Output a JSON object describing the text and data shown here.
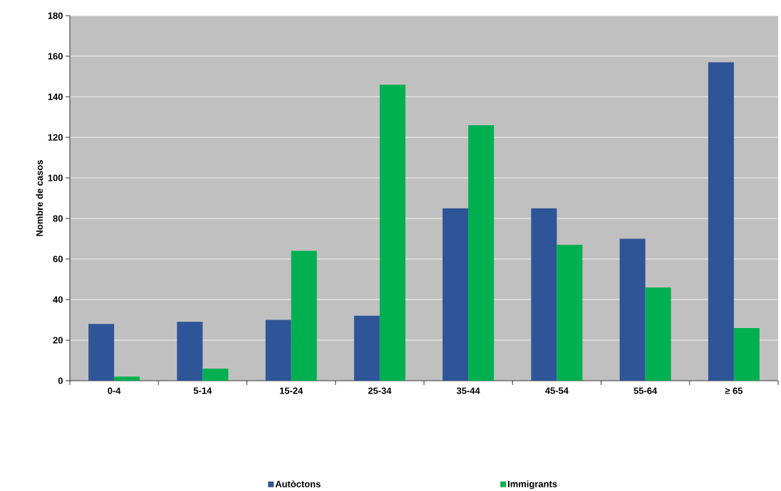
{
  "chart_data": {
    "type": "bar",
    "ylabel": "Nombre de casos",
    "categories": [
      "0-4",
      "5-14",
      "15-24",
      "25-34",
      "35-44",
      "45-54",
      "55-64",
      "≥ 65"
    ],
    "series": [
      {
        "name": "Autòctons",
        "color": "#2e5597",
        "values": [
          28,
          29,
          30,
          32,
          85,
          85,
          70,
          157
        ]
      },
      {
        "name": "Immigrants",
        "color": "#00b050",
        "values": [
          2,
          6,
          64,
          146,
          126,
          67,
          46,
          26
        ]
      }
    ],
    "ylim": [
      0,
      180
    ],
    "yticks": [
      0,
      20,
      40,
      60,
      80,
      100,
      120,
      140,
      160,
      180
    ],
    "grid": "y",
    "legend": "bottom"
  }
}
